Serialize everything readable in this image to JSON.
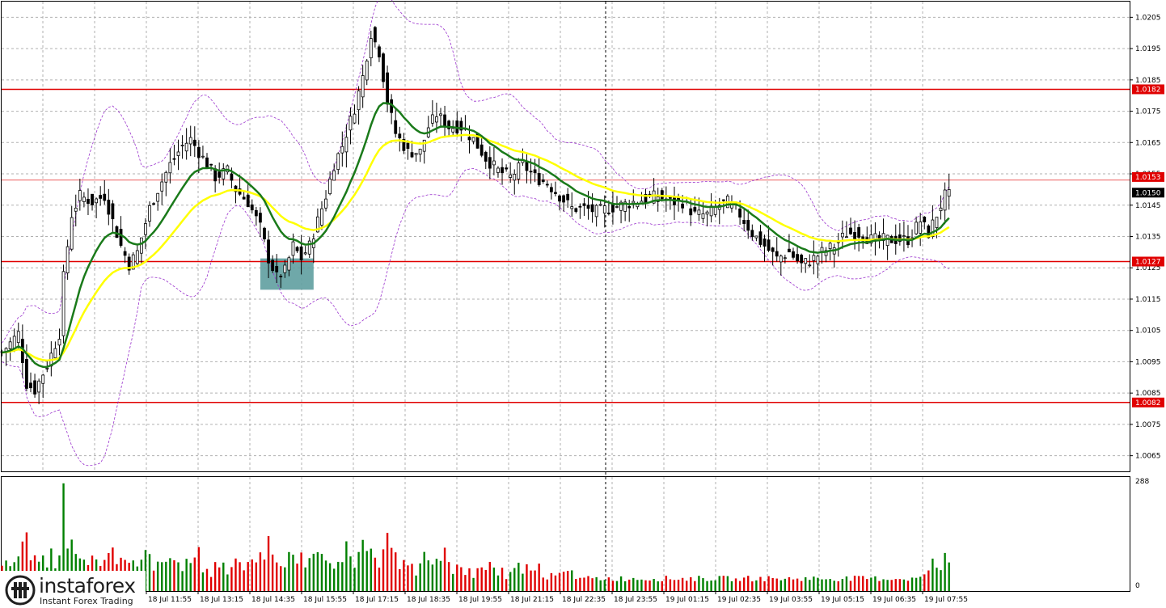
{
  "chart_data": {
    "type": "candlestick",
    "instrument_digits": 4,
    "price_axis": {
      "ylim": [
        1.006,
        1.021
      ],
      "ticks": [
        "1.0205",
        "1.0195",
        "1.0185",
        "1.0175",
        "1.0165",
        "1.0155",
        "1.0145",
        "1.0135",
        "1.0125",
        "1.0115",
        "1.0105",
        "1.0095",
        "1.0085",
        "1.0075",
        "1.0065"
      ]
    },
    "time_axis": {
      "labels": [
        "18 Jul 11:55",
        "18 Jul 13:15",
        "18 Jul 14:35",
        "18 Jul 15:55",
        "18 Jul 17:15",
        "18 Jul 18:35",
        "18 Jul 19:55",
        "18 Jul 21:15",
        "18 Jul 22:35",
        "18 Jul 23:55",
        "19 Jul 01:15",
        "19 Jul 02:35",
        "19 Jul 03:55",
        "19 Jul 05:15",
        "19 Jul 06:35",
        "19 Jul 07:55"
      ],
      "session_divider": "19 Jul 00:00"
    },
    "horizontal_levels": [
      {
        "label": "1.0182",
        "value": 1.0182,
        "color": "#e00000"
      },
      {
        "label": "1.0127",
        "value": 1.0127,
        "color": "#e00000"
      },
      {
        "label": "1.0082",
        "value": 1.0082,
        "color": "#e00000"
      }
    ],
    "price_markers": [
      {
        "label": "1.0153",
        "value": 1.0153,
        "color": "#e00000"
      },
      {
        "label": "1.0150",
        "value": 1.015,
        "color": "#000000"
      }
    ],
    "price_path": [
      [
        0,
        1.0098
      ],
      [
        4,
        1.0104
      ],
      [
        6,
        1.0088
      ],
      [
        8,
        1.0086
      ],
      [
        11,
        1.0094
      ],
      [
        14,
        1.0104
      ],
      [
        15,
        1.0122
      ],
      [
        17,
        1.0142
      ],
      [
        19,
        1.0148
      ],
      [
        22,
        1.0146
      ],
      [
        25,
        1.0148
      ],
      [
        27,
        1.014
      ],
      [
        29,
        1.0132
      ],
      [
        31,
        1.0126
      ],
      [
        33,
        1.013
      ],
      [
        36,
        1.0144
      ],
      [
        38,
        1.015
      ],
      [
        41,
        1.0158
      ],
      [
        44,
        1.0164
      ],
      [
        46,
        1.0166
      ],
      [
        49,
        1.016
      ],
      [
        52,
        1.0154
      ],
      [
        55,
        1.0156
      ],
      [
        57,
        1.015
      ],
      [
        60,
        1.0146
      ],
      [
        63,
        1.0138
      ],
      [
        65,
        1.0128
      ],
      [
        67,
        1.0122
      ],
      [
        69,
        1.0124
      ],
      [
        71,
        1.0132
      ],
      [
        73,
        1.0128
      ],
      [
        75,
        1.0132
      ],
      [
        77,
        1.014
      ],
      [
        79,
        1.0148
      ],
      [
        81,
        1.0158
      ],
      [
        83,
        1.0164
      ],
      [
        86,
        1.0176
      ],
      [
        88,
        1.0186
      ],
      [
        90,
        1.02
      ],
      [
        92,
        1.0194
      ],
      [
        94,
        1.0178
      ],
      [
        96,
        1.0168
      ],
      [
        99,
        1.0162
      ],
      [
        102,
        1.0162
      ],
      [
        104,
        1.017
      ],
      [
        106,
        1.0174
      ],
      [
        109,
        1.017
      ],
      [
        112,
        1.017
      ],
      [
        115,
        1.0166
      ],
      [
        118,
        1.016
      ],
      [
        121,
        1.0156
      ],
      [
        124,
        1.0154
      ],
      [
        127,
        1.0158
      ],
      [
        130,
        1.0154
      ],
      [
        133,
        1.0152
      ],
      [
        136,
        1.0148
      ],
      [
        139,
        1.0144
      ],
      [
        142,
        1.0144
      ],
      [
        145,
        1.0143
      ],
      [
        148,
        1.0144
      ],
      [
        151,
        1.0145
      ],
      [
        154,
        1.0146
      ],
      [
        157,
        1.0147
      ],
      [
        160,
        1.0148
      ],
      [
        163,
        1.0146
      ],
      [
        166,
        1.0146
      ],
      [
        169,
        1.0142
      ],
      [
        172,
        1.0142
      ],
      [
        175,
        1.0145
      ],
      [
        177,
        1.0146
      ],
      [
        180,
        1.0142
      ],
      [
        183,
        1.0136
      ],
      [
        186,
        1.0132
      ],
      [
        189,
        1.0128
      ],
      [
        192,
        1.013
      ],
      [
        195,
        1.0126
      ],
      [
        198,
        1.0128
      ],
      [
        200,
        1.013
      ],
      [
        203,
        1.0132
      ],
      [
        206,
        1.0136
      ],
      [
        209,
        1.0136
      ],
      [
        212,
        1.0134
      ],
      [
        215,
        1.0134
      ],
      [
        218,
        1.0134
      ],
      [
        221,
        1.0134
      ],
      [
        224,
        1.014
      ],
      [
        226,
        1.0136
      ],
      [
        228,
        1.0142
      ],
      [
        230,
        1.0148
      ],
      [
        231,
        1.0153
      ]
    ],
    "volume_axis": {
      "ylim": [
        0,
        288
      ],
      "ticks": [
        "288",
        "0"
      ]
    },
    "indicators": [
      {
        "color": "#1a7a1a"
      },
      {
        "color": "#ffff00"
      },
      {
        "color": "#9a32cd"
      }
    ],
    "highlight_zone": {
      "from_bar": 63,
      "to_bar": 76,
      "price_low": 1.0118,
      "price_high": 1.0128,
      "color": "#5f9ea0"
    }
  },
  "branding": {
    "name": "instaforex",
    "tagline": "Instant Forex Trading"
  }
}
